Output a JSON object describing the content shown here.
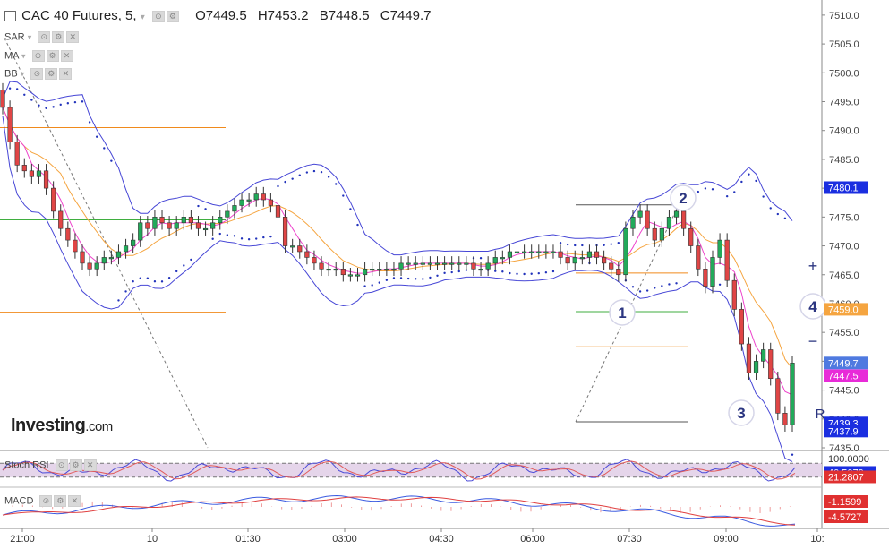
{
  "header": {
    "title": "CAC 40 Futures, 5,",
    "open": "O7449.5",
    "high": "H7453.2",
    "low": "B7448.5",
    "close": "C7449.7"
  },
  "indicators": [
    "SAR",
    "MA",
    "BB"
  ],
  "logo": {
    "brand": "Investing",
    "suffix": ".com"
  },
  "colors": {
    "up": "#22aa5a",
    "down": "#e04545",
    "bollinger": "#4747d6",
    "sar": "#2233bb",
    "ma_fast": "#ee44cc",
    "ma_slow": "#f5a540",
    "hline_orange": "#f08a1c",
    "hline_green": "#3fae3f",
    "rsi_fill": "#dcc7e3",
    "macd_fast": "#3a5ae0",
    "macd_slow": "#e04040"
  },
  "chart_data": {
    "type": "candlestick",
    "ylim": [
      7435,
      7512
    ],
    "yticks": [
      "7510.0",
      "7505.0",
      "7500.0",
      "7495.0",
      "7490.0",
      "7485.0",
      "7480.0",
      "7475.0",
      "7470.0",
      "7465.0",
      "7460.0",
      "7455.0",
      "7450.0",
      "7445.0",
      "7440.0",
      "7435.0"
    ],
    "xticks": [
      "21:00",
      "10",
      "01:30",
      "03:00",
      "04:30",
      "06:00",
      "07:30",
      "09:00",
      "10:"
    ],
    "price_labels": [
      {
        "text": "7480.1",
        "value": 7480.1,
        "bg": "#1a2ee0",
        "fg": "#ffffff"
      },
      {
        "text": "7459.0",
        "value": 7459.0,
        "bg": "#f5a540",
        "fg": "#ffffff"
      },
      {
        "text": "7449.7",
        "value": 7449.7,
        "bg": "#4f7ae0",
        "fg": "#ffffff"
      },
      {
        "text": "7447.5",
        "value": 7447.5,
        "bg": "#e82bd8",
        "fg": "#ffffff"
      },
      {
        "text": "7439.3",
        "value": 7439.3,
        "bg": "#1a2ee0",
        "fg": "#ffffff"
      },
      {
        "text": "7437.9",
        "value": 7437.9,
        "bg": "#1a2ee0",
        "fg": "#ffffff"
      }
    ],
    "annotations": [
      "1",
      "2",
      "3",
      "4"
    ],
    "chart_buttons": [
      "+",
      "−",
      "R"
    ],
    "candles": [
      7494,
      7488,
      7484,
      7483,
      7482,
      7483,
      7480,
      7476,
      7473,
      7471,
      7469,
      7467,
      7466,
      7467,
      7468,
      7468,
      7469,
      7470,
      7471,
      7474,
      7473,
      7475,
      7474,
      7473,
      7474,
      7475,
      7474,
      7473,
      7473,
      7474,
      7475,
      7476,
      7477,
      7478,
      7478,
      7479,
      7478,
      7477,
      7475,
      7470,
      7470,
      7469,
      7468,
      7467,
      7466,
      7466,
      7466,
      7465,
      7465,
      7465,
      7466,
      7466,
      7466,
      7466,
      7466,
      7467,
      7467,
      7467,
      7467,
      7467,
      7467,
      7467,
      7467,
      7467,
      7467,
      7466,
      7466,
      7467,
      7468,
      7468,
      7469,
      7469,
      7469,
      7469,
      7469,
      7469,
      7469,
      7468,
      7467,
      7468,
      7468,
      7469,
      7468,
      7467,
      7466,
      7465,
      7473,
      7475,
      7476,
      7473,
      7471,
      7473,
      7475,
      7476,
      7473,
      7470,
      7466,
      7463,
      7468,
      7471,
      7464,
      7459,
      7453,
      7448,
      7450,
      7452,
      7447,
      7441,
      7439,
      7449.7
    ],
    "indicator_panels": [
      {
        "name": "Stoch RSI",
        "range": [
          0,
          100
        ],
        "labels": [
          {
            "text": "100.0000",
            "value": 100
          },
          {
            "text": "40.5079",
            "value": 40.5079,
            "bg": "#1a2ee0",
            "fg": "#ffffff"
          },
          {
            "text": "21.2807",
            "value": 21.2807,
            "bg": "#e03030",
            "fg": "#ffffff"
          }
        ]
      },
      {
        "name": "MACD",
        "labels": [
          {
            "text": "-1.1599",
            "value": -1.1599,
            "bg": "#e03030",
            "fg": "#ffffff"
          },
          {
            "text": "-4.5727",
            "value": -4.5727,
            "bg": "#e03030",
            "fg": "#ffffff"
          }
        ]
      }
    ]
  }
}
